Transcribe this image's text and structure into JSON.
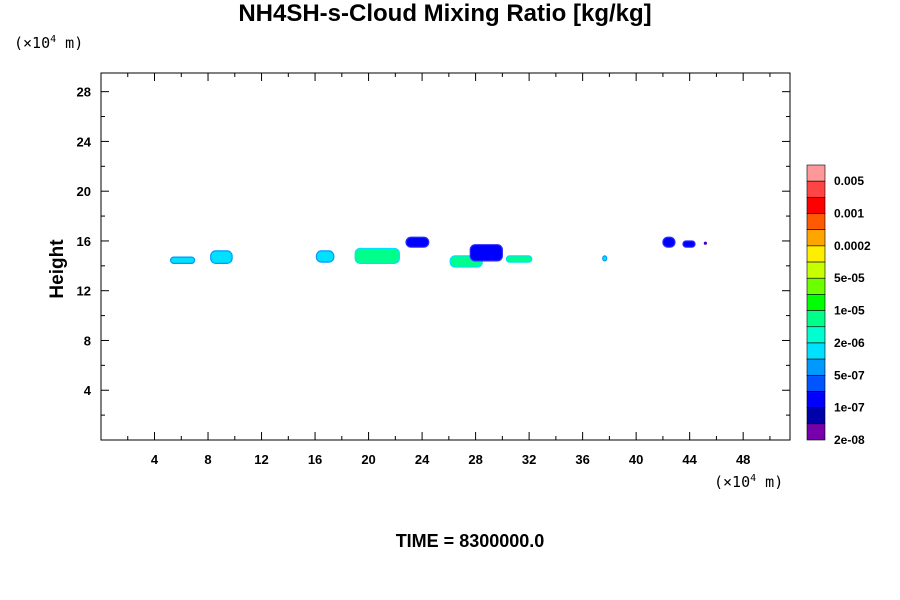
{
  "title": "NH4SH-s-Cloud Mixing Ratio [kg/kg]",
  "y_unit": {
    "prefix": "(×10",
    "exp": "4",
    "suffix": " m)"
  },
  "x_unit": {
    "prefix": "(×10",
    "exp": "4",
    "suffix": " m)"
  },
  "time_label": "TIME = 8300000.0",
  "colorbar": {
    "labels": [
      "0.005",
      "0.001",
      "0.0002",
      "5e-05",
      "1e-05",
      "2e-06",
      "5e-07",
      "1e-07",
      "2e-08"
    ],
    "colors": [
      "#ff9999",
      "#ff4444",
      "#ff0000",
      "#ff5a00",
      "#ffa500",
      "#ffee00",
      "#c8ff00",
      "#6cff00",
      "#00ff00",
      "#00ff8a",
      "#00ffd0",
      "#00e0ff",
      "#0099ff",
      "#0055ff",
      "#0000ff",
      "#0000aa",
      "#7700aa"
    ]
  },
  "chart_data": {
    "type": "heatmap",
    "xlabel": "",
    "ylabel": "Height",
    "xlim": [
      0,
      51.5
    ],
    "ylim": [
      0,
      29.5
    ],
    "x_ticks": [
      4,
      8,
      12,
      16,
      20,
      24,
      28,
      32,
      36,
      40,
      44,
      48
    ],
    "y_ticks": [
      4,
      8,
      12,
      16,
      20,
      24,
      28
    ],
    "cloud_patches": [
      {
        "x": [
          5.2,
          7.0
        ],
        "y": [
          14.2,
          14.7
        ],
        "level": "5e-07"
      },
      {
        "x": [
          8.2,
          9.8
        ],
        "y": [
          14.2,
          15.2
        ],
        "level": "5e-07"
      },
      {
        "x": [
          16.1,
          17.4
        ],
        "y": [
          14.3,
          15.2
        ],
        "level": "5e-07"
      },
      {
        "x": [
          19.0,
          22.3
        ],
        "y": [
          14.2,
          15.4
        ],
        "level": "2e-06"
      },
      {
        "x": [
          22.8,
          24.5
        ],
        "y": [
          15.5,
          16.3
        ],
        "level": "1e-07"
      },
      {
        "x": [
          26.1,
          28.5
        ],
        "y": [
          13.9,
          14.8
        ],
        "level": "2e-06"
      },
      {
        "x": [
          27.6,
          30.0
        ],
        "y": [
          14.4,
          15.7
        ],
        "level": "1e-07"
      },
      {
        "x": [
          30.3,
          32.2
        ],
        "y": [
          14.3,
          14.8
        ],
        "level": "2e-06"
      },
      {
        "x": [
          37.5,
          37.8
        ],
        "y": [
          14.4,
          14.8
        ],
        "level": "5e-07"
      },
      {
        "x": [
          42.0,
          42.9
        ],
        "y": [
          15.5,
          16.3
        ],
        "level": "1e-07"
      },
      {
        "x": [
          43.5,
          44.4
        ],
        "y": [
          15.5,
          16.0
        ],
        "level": "1e-07"
      },
      {
        "x": [
          45.1,
          45.2
        ],
        "y": [
          15.8,
          15.9
        ],
        "level": "2e-08"
      }
    ]
  }
}
